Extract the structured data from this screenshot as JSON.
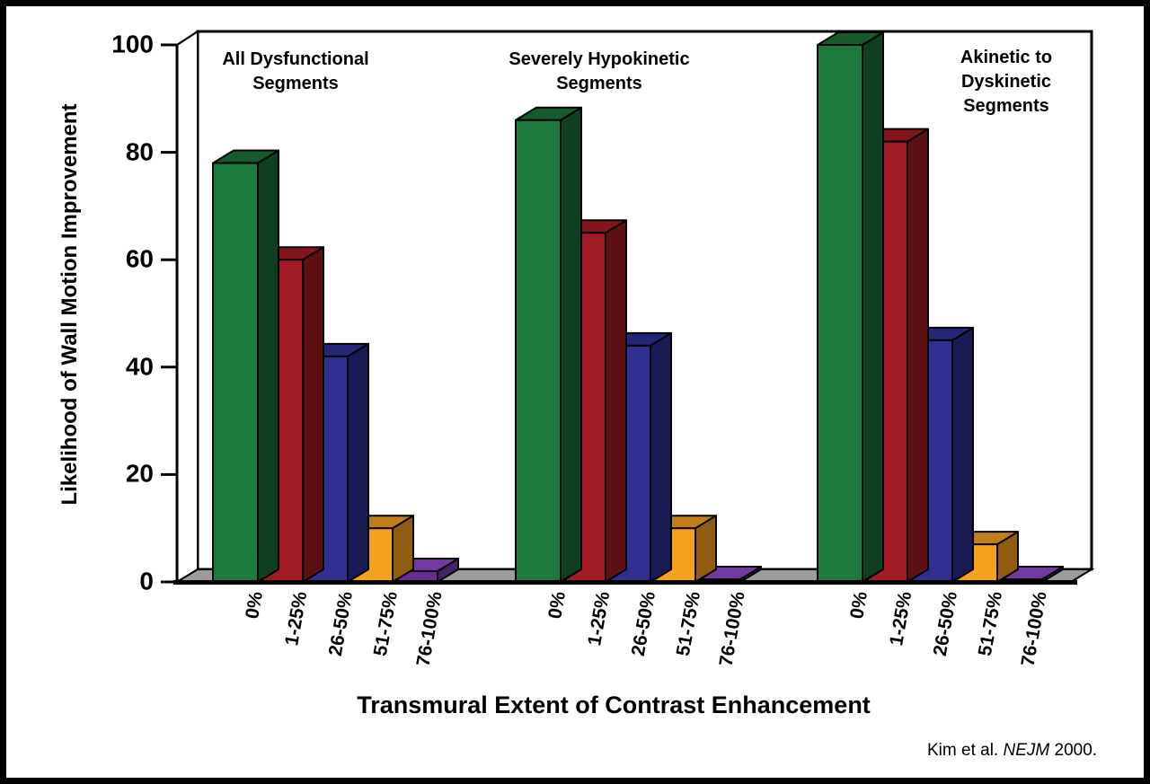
{
  "page": {
    "background": "#ffffff",
    "border_color": "#000000"
  },
  "chart_data": {
    "type": "bar",
    "view": "3d-column",
    "title": "",
    "ylabel": "Likelihood of Wall Motion Improvement",
    "xlabel": "Transmural Extent of Contrast Enhancement",
    "ylim": [
      0,
      100
    ],
    "yticks": [
      0,
      20,
      40,
      60,
      80,
      100
    ],
    "grid": false,
    "legend": "none",
    "categories": [
      "0%",
      "1-25%",
      "26-50%",
      "51-75%",
      "76-100%"
    ],
    "bar_colors": [
      {
        "name": "green",
        "front": "#1E7A3C",
        "top": "#175A2B",
        "side": "#103F1E"
      },
      {
        "name": "dark-red",
        "front": "#A11C22",
        "top": "#84151A",
        "side": "#5C1013"
      },
      {
        "name": "blue",
        "front": "#2E3192",
        "top": "#242777",
        "side": "#191B55"
      },
      {
        "name": "orange",
        "front": "#F5A11E",
        "top": "#C17D18",
        "side": "#8F5C10"
      },
      {
        "name": "purple",
        "front": "#672D92",
        "top": "#7439A3",
        "side": "#45206B"
      }
    ],
    "groups": [
      {
        "label": "All Dysfunctional\nSegments",
        "values": [
          78,
          60,
          42,
          10,
          2
        ]
      },
      {
        "label": "Severely Hypokinetic\nSegments",
        "values": [
          86,
          65,
          44,
          10,
          0.5
        ]
      },
      {
        "label": "Akinetic to\nDyskinetic\nSegments",
        "values": [
          100,
          82,
          45,
          7,
          0.5
        ]
      }
    ],
    "wall_color": "#FFFFFF",
    "floor_color": "#9C9C9C"
  },
  "citation": {
    "prefix": "Kim et al. ",
    "journal": "NEJM",
    "suffix": " 2000."
  }
}
